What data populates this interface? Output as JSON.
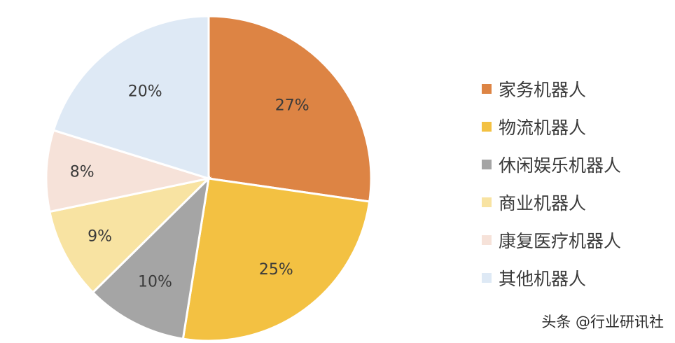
{
  "chart_data": {
    "type": "pie",
    "categories": [
      "家务机器人",
      "物流机器人",
      "休闲娱乐机器人",
      "商业机器人",
      "康复医疗机器人",
      "其他机器人"
    ],
    "values": [
      27,
      25,
      10,
      9,
      8,
      20
    ],
    "labels": [
      "27%",
      "25%",
      "10%",
      "9%",
      "8%",
      "20%"
    ],
    "colors": [
      "#DD8444",
      "#F3C142",
      "#A5A5A5",
      "#F8E3A2",
      "#F6E2D9",
      "#DEE9F5"
    ],
    "legend_position": "right",
    "start_angle": "12 o'clock",
    "direction": "clockwise"
  },
  "watermark": "头条 @行业研讯社"
}
